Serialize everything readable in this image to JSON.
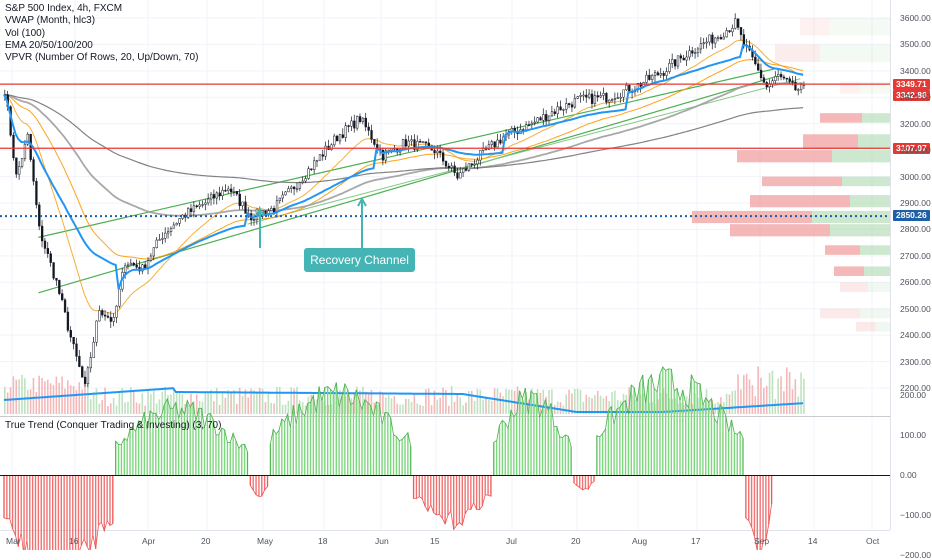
{
  "legend": {
    "symbol": "S&P 500 Index, 4h, FXCM",
    "indicators": [
      "VWAP (Month, hlc3)",
      "Vol (100)",
      "EMA 20/50/100/200",
      "VPVR (Number Of Rows, 20, Up/Down, 70)"
    ]
  },
  "oscillator": {
    "title": "True Trend (Conquer Trading & Investing) (3, 70)",
    "ticks": [
      "200.00",
      "100.00",
      "0.00",
      "−100.00",
      "−200.00"
    ],
    "colors": {
      "positive": "#4caf50",
      "negative": "#ef5350"
    }
  },
  "annotation": "Recovery Channel",
  "price_tags": {
    "resistance": {
      "label": "3349.71",
      "value": 3349.71,
      "color": "#e53935"
    },
    "last": {
      "label": "3342.86",
      "value": 3342.86,
      "color": "#e53935"
    },
    "support": {
      "label": "3107.07",
      "value": 3107.07,
      "color": "#e53935"
    },
    "poc": {
      "label": "2850.26",
      "value": 2850.26,
      "color": "#1e5fa8"
    }
  },
  "chart_data": [
    {
      "type": "line",
      "title": "S&P 500 Index, 4h, FXCM",
      "y_ticks": [
        "3600.00",
        "3500.00",
        "3400.00",
        "3300.00",
        "3200.00",
        "3100.00",
        "3000.00",
        "2900.00",
        "2800.00",
        "2700.00",
        "2600.00",
        "2500.00",
        "2400.00",
        "2300.00",
        "2200.00"
      ],
      "ylim": [
        2150,
        3620
      ],
      "x_ticks": [
        "Mar",
        "16",
        "Apr",
        "20",
        "May",
        "18",
        "Jun",
        "15",
        "Jul",
        "20",
        "Aug",
        "17",
        "Sep",
        "14",
        "Oct"
      ],
      "price_path": {
        "x_index": [
          0,
          4,
          8,
          12,
          18,
          24,
          28,
          33,
          38,
          42,
          48,
          55,
          62,
          70,
          78,
          86,
          94,
          100,
          108,
          116,
          124,
          132,
          140,
          150,
          158,
          166,
          174,
          184,
          192,
          200,
          210,
          220,
          230,
          240,
          250,
          255,
          258,
          262,
          266,
          270,
          276
        ],
        "close": [
          3330,
          3000,
          3150,
          2800,
          2600,
          2350,
          2200,
          2500,
          2450,
          2680,
          2650,
          2780,
          2850,
          2900,
          2960,
          2850,
          2880,
          2950,
          3050,
          3150,
          3220,
          3080,
          3130,
          3100,
          3000,
          3080,
          3150,
          3200,
          3250,
          3290,
          3300,
          3340,
          3400,
          3480,
          3540,
          3580,
          3500,
          3420,
          3340,
          3380,
          3330
        ]
      },
      "levels": {
        "resistance": 3349.71,
        "support": 3107.07,
        "poc": 2850.26,
        "last": 3342.86
      },
      "channel": {
        "upper": [
          [
            12,
            2770
          ],
          [
            270,
            3410
          ]
        ],
        "lower": [
          [
            12,
            2560
          ],
          [
            270,
            3380
          ]
        ],
        "mid": [
          [
            85,
            2820
          ],
          [
            278,
            3370
          ]
        ]
      }
    },
    {
      "type": "bar",
      "title": "True Trend (Conquer Trading & Investing) (3, 70)",
      "ylim": [
        -250,
        250
      ],
      "segments": [
        {
          "from": 0,
          "to": 38,
          "peak": -250
        },
        {
          "from": 39,
          "to": 85,
          "peak": 170
        },
        {
          "from": 86,
          "to": 92,
          "peak": -60
        },
        {
          "from": 93,
          "to": 142,
          "peak": 210
        },
        {
          "from": 143,
          "to": 170,
          "peak": -120
        },
        {
          "from": 171,
          "to": 198,
          "peak": 200
        },
        {
          "from": 199,
          "to": 206,
          "peak": -40
        },
        {
          "from": 207,
          "to": 258,
          "peak": 240
        },
        {
          "from": 259,
          "to": 268,
          "peak": -210
        }
      ]
    }
  ]
}
